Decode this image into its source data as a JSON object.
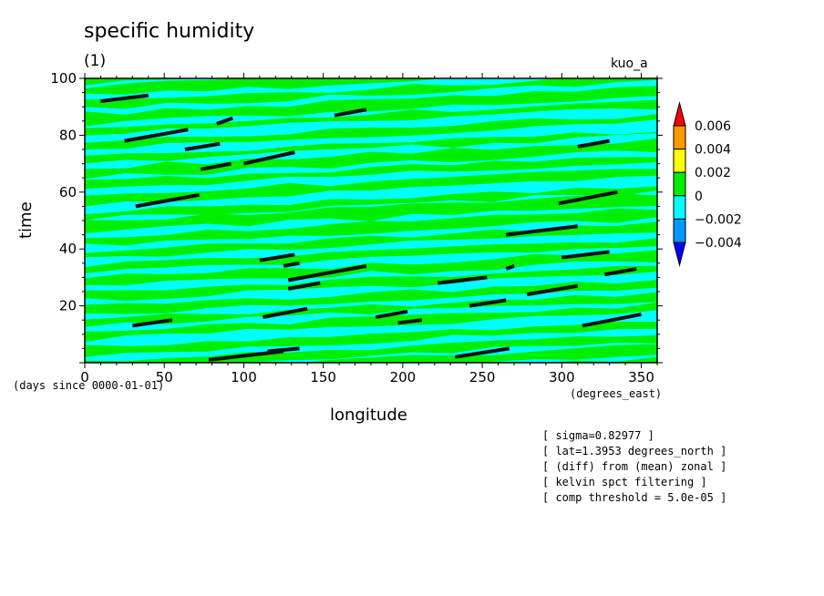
{
  "chart_data": {
    "type": "heatmap",
    "title": "specific humidity",
    "subtitle": "(1)",
    "run_label": "kuo_a",
    "xlabel": "longitude",
    "ylabel": "time",
    "x_units": "(degrees_east)",
    "time_units": "(days since 0000-01-01)",
    "xlim": [
      0,
      360
    ],
    "ylim": [
      0,
      100
    ],
    "x_ticks": [
      0,
      50,
      100,
      150,
      200,
      250,
      300,
      350
    ],
    "y_ticks": [
      20,
      40,
      60,
      80,
      100
    ],
    "colorbar": {
      "levels": [
        "0.006",
        "0.004",
        "0.002",
        "0",
        "−0.002",
        "−0.004"
      ],
      "colors": [
        "#ff0000",
        "#ff9900",
        "#ffff00",
        "#00ee00",
        "#00ffff",
        "#0099ff",
        "#0000ff"
      ]
    },
    "band_colors": {
      "positive": "#00ee00",
      "negative": "#00ffff"
    },
    "threshold_segments": [
      {
        "x": [
          10,
          40
        ],
        "t": [
          92,
          94
        ]
      },
      {
        "x": [
          25,
          65
        ],
        "t": [
          78,
          82
        ]
      },
      {
        "x": [
          83,
          93
        ],
        "t": [
          84,
          86
        ]
      },
      {
        "x": [
          63,
          85
        ],
        "t": [
          75,
          77
        ]
      },
      {
        "x": [
          73,
          92
        ],
        "t": [
          68,
          70
        ]
      },
      {
        "x": [
          100,
          132
        ],
        "t": [
          70,
          74
        ]
      },
      {
        "x": [
          157,
          177
        ],
        "t": [
          87,
          89
        ]
      },
      {
        "x": [
          32,
          72
        ],
        "t": [
          55,
          59
        ]
      },
      {
        "x": [
          310,
          330
        ],
        "t": [
          76,
          78
        ]
      },
      {
        "x": [
          298,
          335
        ],
        "t": [
          56,
          60
        ]
      },
      {
        "x": [
          265,
          310
        ],
        "t": [
          45,
          48
        ]
      },
      {
        "x": [
          300,
          330
        ],
        "t": [
          37,
          39
        ]
      },
      {
        "x": [
          110,
          132
        ],
        "t": [
          36,
          38
        ]
      },
      {
        "x": [
          125,
          135
        ],
        "t": [
          34,
          35
        ]
      },
      {
        "x": [
          128,
          177
        ],
        "t": [
          29,
          34
        ]
      },
      {
        "x": [
          128,
          148
        ],
        "t": [
          26,
          28
        ]
      },
      {
        "x": [
          222,
          253
        ],
        "t": [
          28,
          30
        ]
      },
      {
        "x": [
          265,
          270
        ],
        "t": [
          33,
          34
        ]
      },
      {
        "x": [
          278,
          310
        ],
        "t": [
          24,
          27
        ]
      },
      {
        "x": [
          327,
          347
        ],
        "t": [
          31,
          33
        ]
      },
      {
        "x": [
          112,
          140
        ],
        "t": [
          16,
          19
        ]
      },
      {
        "x": [
          183,
          203
        ],
        "t": [
          16,
          18
        ]
      },
      {
        "x": [
          197,
          212
        ],
        "t": [
          14,
          15
        ]
      },
      {
        "x": [
          242,
          265
        ],
        "t": [
          20,
          22
        ]
      },
      {
        "x": [
          313,
          350
        ],
        "t": [
          13,
          17
        ]
      },
      {
        "x": [
          30,
          55
        ],
        "t": [
          13,
          15
        ]
      },
      {
        "x": [
          78,
          125
        ],
        "t": [
          1,
          4
        ]
      },
      {
        "x": [
          115,
          135
        ],
        "t": [
          4,
          5
        ]
      },
      {
        "x": [
          233,
          267
        ],
        "t": [
          2,
          5
        ]
      }
    ]
  },
  "annotations": [
    "[ sigma=0.82977 ]",
    "[ lat=1.3953 degrees_north ]",
    "[ (diff) from (mean) zonal ]",
    "[ kelvin spct filtering ]",
    "[ comp threshold = 5.0e-05 ]"
  ]
}
